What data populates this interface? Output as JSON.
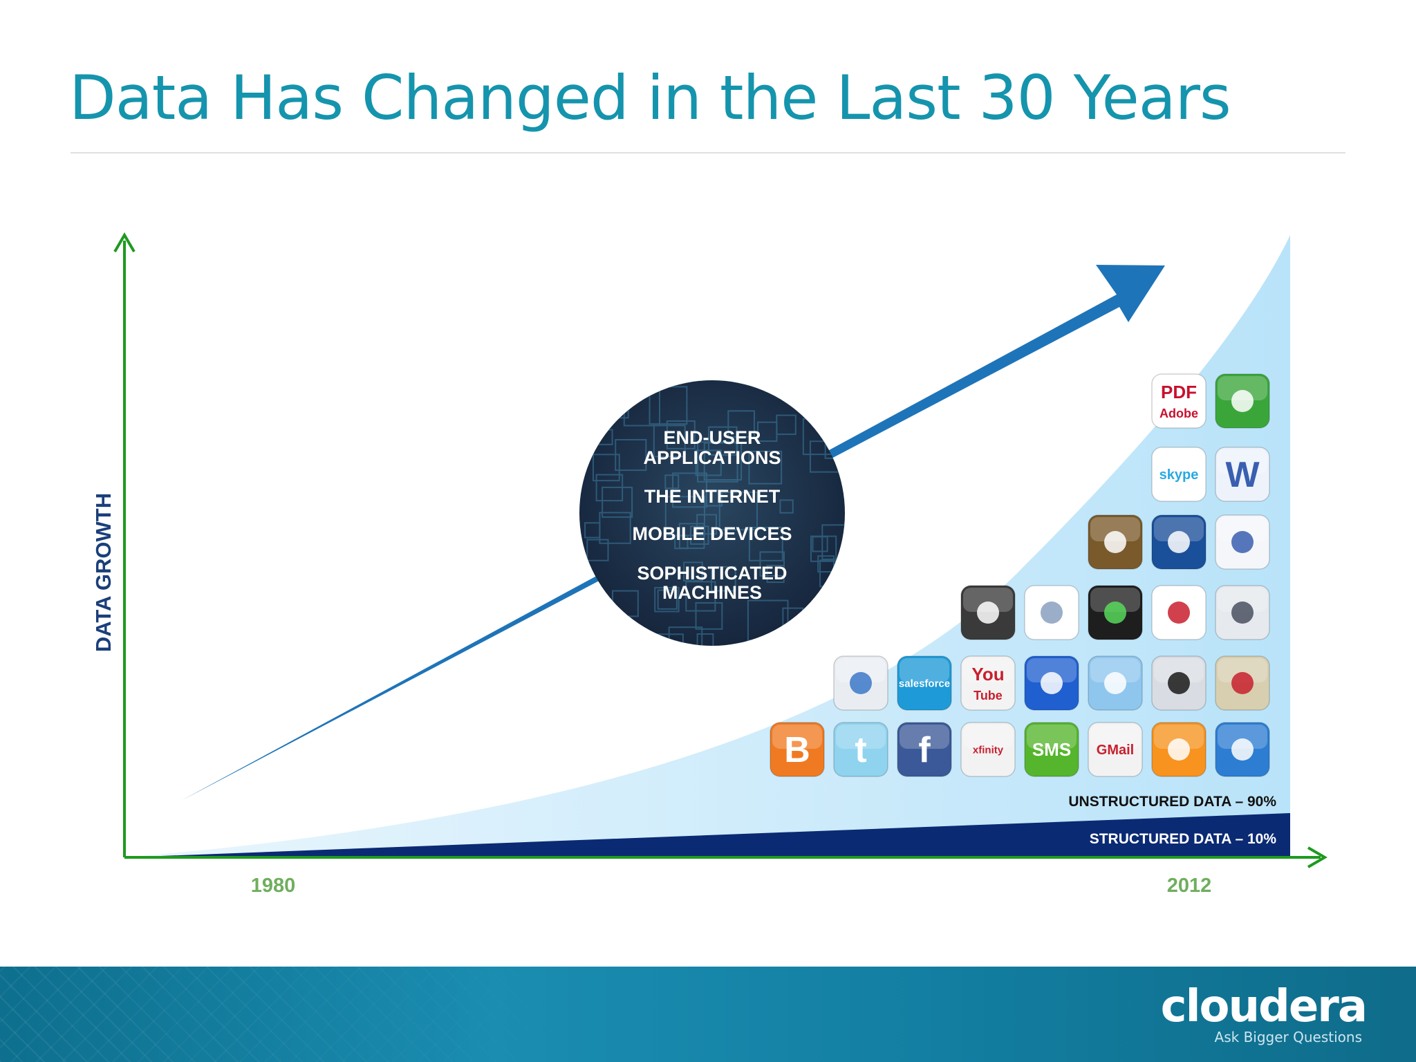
{
  "slide": {
    "title": "Data Has Changed in the Last 30 Years"
  },
  "diagram": {
    "y_axis_label": "DATA GROWTH",
    "x_start_label": "1980",
    "x_end_label": "2012",
    "drivers": [
      "END-USER",
      "APPLICATIONS",
      "THE INTERNET",
      "MOBILE DEVICES",
      "SOPHISTICATED",
      "MACHINES"
    ],
    "unstructured_label": "UNSTRUCTURED DATA – 90%",
    "structured_label": "STRUCTURED DATA – 10%",
    "app_icons": [
      {
        "name": "pdf-adobe-icon",
        "text": "PDF",
        "text2": "Adobe",
        "color": "#ffffff",
        "fg": "#c8102e"
      },
      {
        "name": "truck-icon",
        "text": "",
        "color": "#3aa63a",
        "fg": "#ffffff"
      },
      {
        "name": "skype-icon",
        "text": "skype",
        "color": "#ffffff",
        "fg": "#29a9e1"
      },
      {
        "name": "word-doc-icon",
        "text": "W",
        "color": "#eef3fb",
        "fg": "#3a5fb0"
      },
      {
        "name": "photo-camera-icon",
        "text": "",
        "color": "#7a5a2a",
        "fg": "#ffffff"
      },
      {
        "name": "weather-globe-icon",
        "text": "",
        "color": "#1a4f9a",
        "fg": "#ffffff"
      },
      {
        "name": "app-window-icon",
        "text": "",
        "color": "#f4f6fa",
        "fg": "#3a5fb0"
      },
      {
        "name": "remote-control-icon",
        "text": "",
        "color": "#3a3a3a",
        "fg": "#ffffff"
      },
      {
        "name": "spreadsheet-icon",
        "text": "",
        "color": "#ffffff",
        "fg": "#8aa0c0"
      },
      {
        "name": "server-rack-icon",
        "text": "",
        "color": "#1e1e1e",
        "fg": "#58d85a"
      },
      {
        "name": "calendar-icon",
        "text": "",
        "color": "#ffffff",
        "fg": "#c8202e"
      },
      {
        "name": "security-camera-icon",
        "text": "",
        "color": "#e6e9ee",
        "fg": "#4a5060"
      },
      {
        "name": "shopping-cart-icon",
        "text": "",
        "color": "#e9edf2",
        "fg": "#3c78c8"
      },
      {
        "name": "salesforce-icon",
        "text": "salesforce",
        "color": "#1e9ad8",
        "fg": "#ffffff"
      },
      {
        "name": "youtube-icon",
        "text": "You",
        "text2": "Tube",
        "color": "#f3f3f3",
        "fg": "#c8202e"
      },
      {
        "name": "clapperboard-icon",
        "text": "",
        "color": "#1f5fd0",
        "fg": "#ffffff"
      },
      {
        "name": "stock-chart-icon",
        "text": "",
        "color": "#8fc6ee",
        "fg": "#ffffff"
      },
      {
        "name": "medical-star-icon",
        "text": "",
        "color": "#d9dde3",
        "fg": "#1a1a1a"
      },
      {
        "name": "map-pin-icon",
        "text": "",
        "color": "#d8cfb0",
        "fg": "#c8202e"
      },
      {
        "name": "blogger-icon",
        "text": "B",
        "color": "#f07a22",
        "fg": "#ffffff"
      },
      {
        "name": "twitter-icon",
        "text": "t",
        "color": "#8fd3ef",
        "fg": "#ffffff"
      },
      {
        "name": "facebook-icon",
        "text": "f",
        "color": "#3b5998",
        "fg": "#ffffff"
      },
      {
        "name": "xfinity-icon",
        "text": "xfinity",
        "color": "#f2f2f2",
        "fg": "#c8202e"
      },
      {
        "name": "sms-icon",
        "text": "SMS",
        "color": "#55b52c",
        "fg": "#ffffff"
      },
      {
        "name": "gmail-icon",
        "text": "GMail",
        "color": "#f2f2f2",
        "fg": "#c8202e"
      },
      {
        "name": "rss-icon",
        "text": "",
        "color": "#f7931e",
        "fg": "#ffffff"
      },
      {
        "name": "dropbox-icon",
        "text": "",
        "color": "#2d7dd2",
        "fg": "#ffffff"
      }
    ]
  },
  "footer": {
    "brand": "cloudera",
    "tagline": "Ask Bigger Questions"
  },
  "colors": {
    "title": "#1594ad",
    "axis": "#1e9a1e",
    "axis_label": "#1a3f7a",
    "year_label": "#6fae5e",
    "growth_arrow": "#1e74b8",
    "unstructured_fill": "#bfe6fa",
    "structured_fill": "#0b2a74",
    "circle_bg": "#1c2f44"
  }
}
